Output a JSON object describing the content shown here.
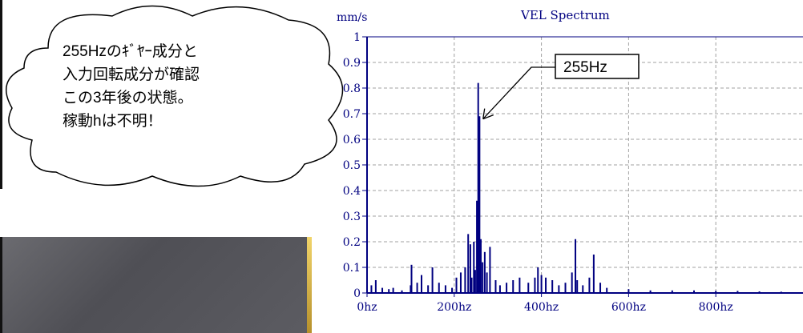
{
  "chart_data": {
    "type": "line",
    "title": "VEL Spectrum",
    "ylabel": "mm/s",
    "xlabel": "",
    "xlim": [
      0,
      1000
    ],
    "ylim": [
      0,
      1
    ],
    "x_tick_labels": [
      "0hz",
      "200hz",
      "400hz",
      "600hz",
      "800hz"
    ],
    "y_tick_labels": [
      "0",
      "0.1",
      "0.2",
      "0.3",
      "0.4",
      "0.5",
      "0.6",
      "0.7",
      "0.8",
      "0.9",
      "1"
    ],
    "peak_annotation": "255Hz",
    "series": [
      {
        "values": [
          [
            10,
            0.03
          ],
          [
            20,
            0.05
          ],
          [
            35,
            0.02
          ],
          [
            50,
            0.015
          ],
          [
            60,
            0.02
          ],
          [
            80,
            0.01
          ],
          [
            100,
            0.03
          ],
          [
            102,
            0.11
          ],
          [
            115,
            0.04
          ],
          [
            125,
            0.07
          ],
          [
            140,
            0.03
          ],
          [
            150,
            0.1
          ],
          [
            165,
            0.04
          ],
          [
            180,
            0.03
          ],
          [
            195,
            0.02
          ],
          [
            205,
            0.06
          ],
          [
            215,
            0.08
          ],
          [
            225,
            0.1
          ],
          [
            232,
            0.23
          ],
          [
            237,
            0.19
          ],
          [
            240,
            0.06
          ],
          [
            245,
            0.2
          ],
          [
            248,
            0.09
          ],
          [
            252,
            0.36
          ],
          [
            255,
            0.82
          ],
          [
            258,
            0.69
          ],
          [
            261,
            0.21
          ],
          [
            265,
            0.12
          ],
          [
            270,
            0.16
          ],
          [
            275,
            0.08
          ],
          [
            282,
            0.18
          ],
          [
            295,
            0.05
          ],
          [
            305,
            0.03
          ],
          [
            320,
            0.04
          ],
          [
            335,
            0.05
          ],
          [
            350,
            0.06
          ],
          [
            370,
            0.04
          ],
          [
            385,
            0.06
          ],
          [
            392,
            0.1
          ],
          [
            400,
            0.07
          ],
          [
            410,
            0.06
          ],
          [
            425,
            0.05
          ],
          [
            440,
            0.03
          ],
          [
            455,
            0.04
          ],
          [
            470,
            0.08
          ],
          [
            478,
            0.21
          ],
          [
            482,
            0.05
          ],
          [
            495,
            0.03
          ],
          [
            510,
            0.06
          ],
          [
            520,
            0.15
          ],
          [
            535,
            0.04
          ],
          [
            550,
            0.02
          ],
          [
            600,
            0.015
          ],
          [
            650,
            0.01
          ],
          [
            700,
            0.01
          ],
          [
            750,
            0.01
          ],
          [
            800,
            0.008
          ],
          [
            850,
            0.008
          ],
          [
            900,
            0.006
          ],
          [
            950,
            0.005
          ]
        ]
      }
    ]
  },
  "callout": {
    "lines": [
      "255Hzのｷﾞﾔｰ成分と",
      "入力回転成分が確認",
      "この3年後の状態。",
      "稼動hは不明！"
    ]
  },
  "colors": {
    "series": "#000080",
    "axis": "#000080",
    "grid": "#a0a0a0"
  }
}
